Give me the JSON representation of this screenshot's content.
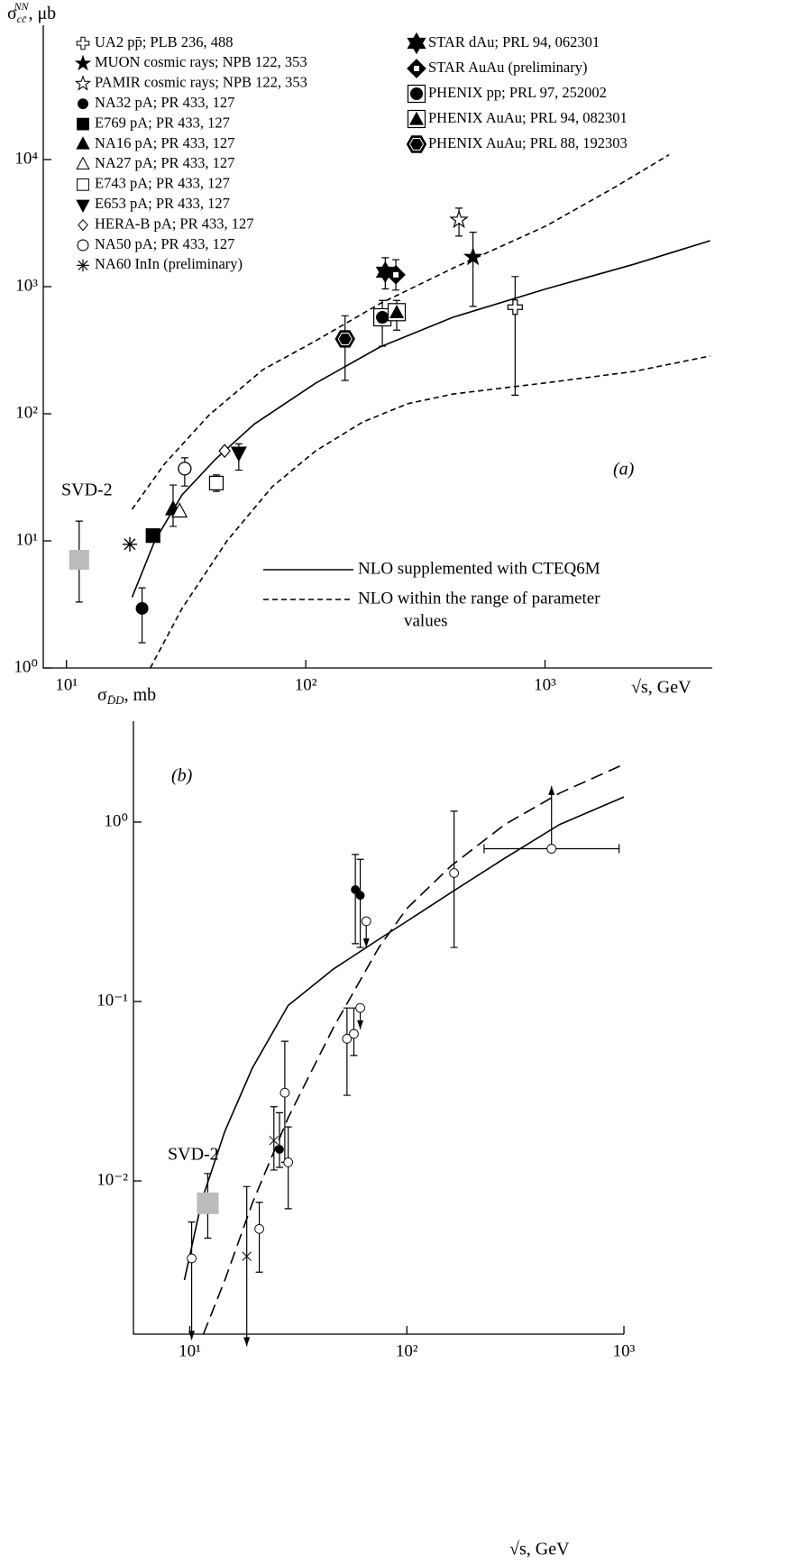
{
  "chart_data": [
    {
      "type": "scatter",
      "xscale": "log",
      "yscale": "log",
      "ylabel": {
        "symbol": "σ",
        "sub": "cc̄",
        "sup": "NN",
        "unit": ", μb"
      },
      "xlabel": "√s, GeV",
      "panel_label": "(a)",
      "xlim": [
        8,
        5000
      ],
      "ylim": [
        1,
        100000
      ],
      "xticks": [
        {
          "value": 10,
          "label": "10¹"
        },
        {
          "value": 100,
          "label": "10²"
        },
        {
          "value": 1000,
          "label": "10³"
        }
      ],
      "yticks": [
        {
          "value": 1,
          "label": "10⁰"
        },
        {
          "value": 10,
          "label": "10¹"
        },
        {
          "value": 100,
          "label": "10²"
        },
        {
          "value": 1000,
          "label": "10³"
        },
        {
          "value": 10000,
          "label": "10⁴"
        }
      ],
      "svd2": {
        "label": "SVD-2",
        "x": 11.3,
        "y": 7.1,
        "ymin": 3.3,
        "ymax": 14.3,
        "color": "#bbbbbb"
      },
      "series": [
        {
          "name": "UA2 pp̄; PLB 236, 488",
          "marker": "open-cross",
          "points": [
            {
              "x": 750,
              "y": 690,
              "ymin": 140,
              "ymax": 1200
            }
          ]
        },
        {
          "name": "MUON cosmic rays; NPB 122, 353",
          "marker": "filled-star",
          "points": [
            {
              "x": 500,
              "y": 1710,
              "ymin": 700,
              "ymax": 2680
            }
          ]
        },
        {
          "name": "PAMIR cosmic rays; NPB 122, 353",
          "marker": "open-star",
          "points": [
            {
              "x": 437,
              "y": 3350,
              "ymin": 2500,
              "ymax": 4150
            }
          ]
        },
        {
          "name": "NA32 pA; PR 433, 127",
          "marker": "filled-circle",
          "points": [
            {
              "x": 20.7,
              "y": 2.94,
              "ymin": 1.58,
              "ymax": 4.27
            }
          ]
        },
        {
          "name": "E769 pA; PR 433, 127",
          "marker": "filled-square",
          "points": [
            {
              "x": 23,
              "y": 11
            }
          ]
        },
        {
          "name": "NA16 pA; PR 433, 127",
          "marker": "filled-triangle",
          "points": [
            {
              "x": 27.9,
              "y": 17.7,
              "ymin": 13,
              "ymax": 27.5
            }
          ]
        },
        {
          "name": "NA27 pA; PR 433, 127",
          "marker": "open-triangle",
          "points": [
            {
              "x": 29.7,
              "y": 17
            }
          ]
        },
        {
          "name": "E743 pA; PR 433, 127",
          "marker": "open-square",
          "points": [
            {
              "x": 42.3,
              "y": 28.5,
              "ymin": 24.5,
              "ymax": 33
            }
          ]
        },
        {
          "name": "E653 pA; PR 433, 127",
          "marker": "filled-down-triangle",
          "points": [
            {
              "x": 52.5,
              "y": 49.5,
              "ymin": 36,
              "ymax": 58
            }
          ]
        },
        {
          "name": "HERA-B pA; PR 433, 127",
          "marker": "open-diamond",
          "points": [
            {
              "x": 45.8,
              "y": 51
            }
          ]
        },
        {
          "name": "NA50 pA; PR 433, 127",
          "marker": "open-circle",
          "points": [
            {
              "x": 31.2,
              "y": 37,
              "ymin": 27,
              "ymax": 45
            }
          ]
        },
        {
          "name": "NA60 InIn (preliminary)",
          "marker": "asterisk",
          "points": [
            {
              "x": 18.4,
              "y": 9.4
            }
          ]
        },
        {
          "name": "STAR dAu; PRL 94, 062301",
          "marker": "star-of-david",
          "points": [
            {
              "x": 215,
              "y": 1300,
              "ymin": 960,
              "ymax": 1690
            }
          ]
        },
        {
          "name": "STAR AuAu (preliminary)",
          "marker": "diamond-square",
          "points": [
            {
              "x": 238,
              "y": 1240,
              "ymin": 940,
              "ymax": 1630
            }
          ]
        },
        {
          "name": "PHENIX pp; PRL 97, 252002",
          "marker": "circle-square",
          "points": [
            {
              "x": 209,
              "y": 574,
              "ymin": 340,
              "ymax": 780
            }
          ]
        },
        {
          "name": "PHENIX AuAu; PRL 94, 082301",
          "marker": "square-triangle",
          "points": [
            {
              "x": 240,
              "y": 630,
              "ymin": 455,
              "ymax": 780
            }
          ]
        },
        {
          "name": "PHENIX AuAu; PRL 88, 192303",
          "marker": "hexagon",
          "points": [
            {
              "x": 146,
              "y": 388,
              "ymin": 183,
              "ymax": 590
            }
          ]
        }
      ],
      "curves": [
        {
          "name": [
            "NLO supplemented with CTEQ6M"
          ],
          "style": "solid",
          "segments": [
            {
              "x": [
                18.8,
                23.4,
                30.4,
                42,
                61,
                110,
                204,
                413,
                1010,
                2350,
                4900
              ],
              "y": [
                3.6,
                10,
                23,
                44,
                83,
                174,
                335,
                575,
                960,
                1500,
                2300
              ]
            }
          ]
        },
        {
          "name": [
            "NLO within the range of parameter",
            "values"
          ],
          "style": "dashed",
          "segments": [
            {
              "x": [
                18.8,
                25.6,
                39.5,
                66.4,
                110,
                204,
                413,
                1010,
                1970,
                3300
              ],
              "y": [
                17.7,
                40,
                98,
                223,
                375,
                735,
                1400,
                3000,
                6100,
                10900
              ]
            },
            {
              "x": [
                22.4,
                30.4,
                46.9,
                72.5,
                110,
                173,
                267,
                413,
                1010,
                2350,
                4900
              ],
              "y": [
                1.0,
                2.94,
                10,
                26.7,
                51,
                86,
                120,
                143,
                175,
                215,
                285
              ]
            }
          ]
        }
      ]
    },
    {
      "type": "scatter",
      "xscale": "log",
      "yscale": "log",
      "ylabel": {
        "symbol": "σ",
        "sub": "D̄D",
        "unit": ", mb"
      },
      "xlabel": "√s, GeV",
      "panel_label": "(b)",
      "xlim": [
        5.5,
        1000
      ],
      "ylim": [
        0.0014,
        3.65
      ],
      "xticks": [
        {
          "value": 10,
          "label": "10¹"
        },
        {
          "value": 100,
          "label": "10²"
        },
        {
          "value": 1000,
          "label": "10³"
        }
      ],
      "yticks": [
        {
          "value": 0.01,
          "label": "10⁻²"
        },
        {
          "value": 0.1,
          "label": "10⁻¹"
        },
        {
          "value": 1,
          "label": "10⁰"
        }
      ],
      "svd2": {
        "label": "SVD-2",
        "x": 12.1,
        "y": 0.0075,
        "ymin": 0.0048,
        "ymax": 0.011,
        "color": "#bbbbbb"
      },
      "series": [
        {
          "marker": "open-circle",
          "points": [
            {
              "x": 10.2,
              "y": 0.0037,
              "ymin": 0.0013,
              "ymax": 0.0059,
              "arrow": "down"
            },
            {
              "x": 20.9,
              "y": 0.0054,
              "ymin": 0.0031,
              "ymax": 0.0076
            },
            {
              "x": 27.4,
              "y": 0.031,
              "ymin": 0.0127,
              "ymax": 0.06
            },
            {
              "x": 28.4,
              "y": 0.0127,
              "ymin": 0.007,
              "ymax": 0.02
            },
            {
              "x": 53,
              "y": 0.062,
              "ymin": 0.03,
              "ymax": 0.092
            },
            {
              "x": 57,
              "y": 0.066,
              "ymin": 0.05,
              "ymax": 0.092
            },
            {
              "x": 61,
              "y": 0.092,
              "ymin": 0.07,
              "arrow": "down"
            },
            {
              "x": 65,
              "y": 0.28,
              "ymin": 0.2,
              "arrow": "down"
            },
            {
              "x": 165,
              "y": 0.52,
              "ymin": 0.2,
              "ymax": 1.15
            },
            {
              "x": 464,
              "y": 0.71,
              "ymax": 1.59,
              "xmin": 227,
              "xmax": 950,
              "arrow": "up"
            }
          ]
        },
        {
          "marker": "filled-circle",
          "points": [
            {
              "x": 25.9,
              "y": 0.015,
              "ymin": 0.0119,
              "ymax": 0.024
            },
            {
              "x": 57.9,
              "y": 0.42,
              "ymin": 0.21,
              "ymax": 0.66
            },
            {
              "x": 61,
              "y": 0.39,
              "ymin": 0.2,
              "ymax": 0.62
            }
          ]
        },
        {
          "marker": "cross",
          "points": [
            {
              "x": 24.4,
              "y": 0.0168,
              "ymin": 0.0115,
              "ymax": 0.0259
            },
            {
              "x": 18.3,
              "y": 0.0038,
              "ymin": 0.0012,
              "ymax": 0.0093,
              "arrow": "down"
            }
          ]
        }
      ],
      "curves": [
        {
          "style": "solid",
          "segments": [
            {
              "x": [
                9.44,
                11.4,
                14.5,
                19.4,
                28.4,
                46,
                74.3,
                100,
                160,
                283,
                506,
                1000
              ],
              "y": [
                0.0028,
                0.0079,
                0.0189,
                0.0425,
                0.095,
                0.152,
                0.222,
                0.28,
                0.405,
                0.63,
                0.97,
                1.38
              ]
            }
          ]
        },
        {
          "style": "dashed",
          "segments": [
            {
              "x": [
                11.55,
                14.5,
                19.4,
                28.4,
                46,
                74.3,
                100,
                160,
                283,
                506,
                1000
              ],
              "y": [
                0.0014,
                0.0028,
                0.0075,
                0.0225,
                0.072,
                0.2,
                0.33,
                0.57,
                0.97,
                1.45,
                2.1
              ]
            }
          ]
        }
      ]
    }
  ]
}
